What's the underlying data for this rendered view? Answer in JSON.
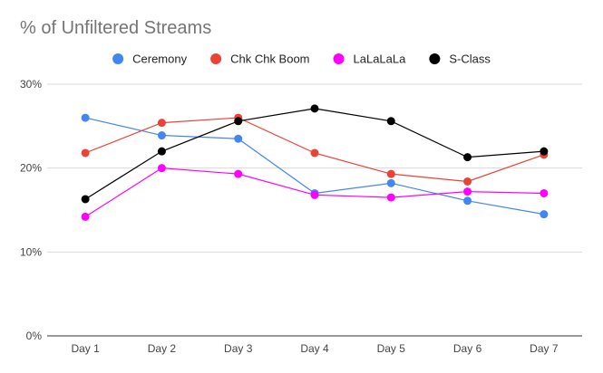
{
  "chart_data": {
    "type": "line",
    "title": "% of Unfiltered Streams",
    "xlabel": "",
    "ylabel": "",
    "categories": [
      "Day 1",
      "Day 2",
      "Day 3",
      "Day 4",
      "Day 5",
      "Day 6",
      "Day 7"
    ],
    "ylim": [
      0,
      30
    ],
    "yticks": [
      0,
      10,
      20,
      30
    ],
    "ytick_labels": [
      "0%",
      "10%",
      "20%",
      "30%"
    ],
    "grid": true,
    "legend_position": "top",
    "series": [
      {
        "name": "Ceremony",
        "color": "#4285f4",
        "values": [
          26.0,
          23.9,
          23.5,
          17.0,
          18.2,
          16.1,
          14.5
        ]
      },
      {
        "name": "Chk Chk Boom",
        "color": "#ea4335",
        "values": [
          21.8,
          25.4,
          26.0,
          21.8,
          19.3,
          18.4,
          21.6
        ]
      },
      {
        "name": "LaLaLaLa",
        "color": "#ff00ff",
        "values": [
          14.2,
          20.0,
          19.3,
          16.8,
          16.5,
          17.2,
          17.0
        ]
      },
      {
        "name": "S-Class",
        "color": "#000000",
        "values": [
          16.3,
          22.0,
          25.6,
          27.1,
          25.6,
          21.3,
          22.0
        ]
      }
    ]
  },
  "colors": {
    "title": "#757575",
    "grid": "#d9d9d9",
    "axis": "#333333",
    "tick_text": "#444444"
  }
}
